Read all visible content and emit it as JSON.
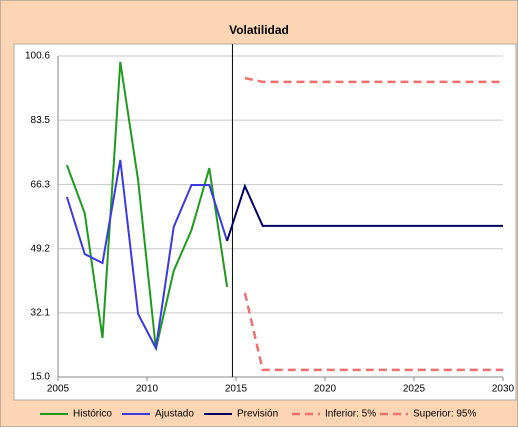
{
  "chart_data": {
    "type": "line",
    "title": "Volatilidad",
    "xlim": [
      2005,
      2030
    ],
    "xticks": [
      2005,
      2010,
      2015,
      2020,
      2025,
      2030
    ],
    "ylim": [
      15,
      100.6
    ],
    "yticks": [
      {
        "value": 15,
        "label": "15.0"
      },
      32.1,
      49.2,
      66.3,
      83.5,
      100.6
    ],
    "grid": true,
    "vlines": [
      2014.8
    ],
    "legend": "bottom",
    "series": [
      {
        "name": "Histórico",
        "color": "#1f9a1f",
        "dash": false,
        "x": [
          2005.5,
          2006.5,
          2007.5,
          2008.5,
          2009.5,
          2010.5,
          2011.5,
          2012.5,
          2013.5,
          2014.5
        ],
        "values": [
          71.5,
          58.7,
          25.4,
          99.0,
          67.5,
          22.5,
          43.3,
          54.2,
          70.7,
          39.0
        ]
      },
      {
        "name": "Ajustado",
        "color": "#3a3ae0",
        "dash": false,
        "x": [
          2005.5,
          2006.5,
          2007.5,
          2008.5,
          2009.5,
          2010.5,
          2011.5,
          2012.5,
          2013.5,
          2014.5
        ],
        "values": [
          63.0,
          47.8,
          45.4,
          72.9,
          31.8,
          22.7,
          55.0,
          66.2,
          66.2,
          51.3
        ]
      },
      {
        "name": "Previsión",
        "color": "#000066",
        "dash": false,
        "x": [
          2014.5,
          2015.5,
          2016.5,
          2030
        ],
        "values": [
          51.3,
          65.9,
          55.3,
          55.3
        ]
      },
      {
        "name": "Inferior: 5%",
        "color": "#f07070",
        "dash": true,
        "x": [
          2015.5,
          2016.5,
          2030
        ],
        "values": [
          37.4,
          16.9,
          16.9
        ]
      },
      {
        "name": "Superior: 95%",
        "color": "#f07070",
        "dash": true,
        "x": [
          2015.5,
          2016.5,
          2030
        ],
        "values": [
          94.7,
          93.7,
          93.7
        ]
      }
    ]
  }
}
